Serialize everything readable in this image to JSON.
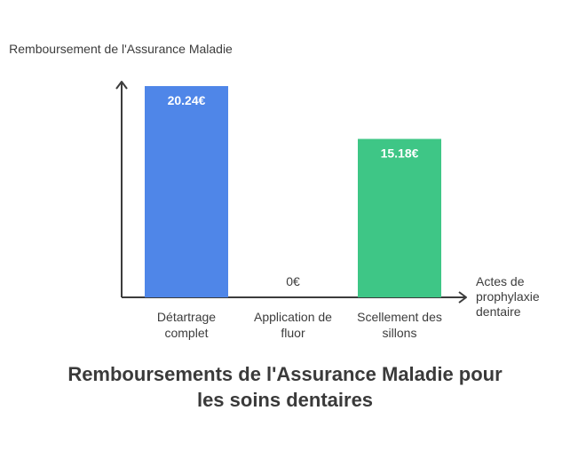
{
  "chart_data": {
    "type": "bar",
    "title": "Remboursements de l'Assurance Maladie pour les soins dentaires",
    "xlabel": "Actes de prophylaxie dentaire",
    "ylabel": "Remboursement de l'Assurance Maladie",
    "categories": [
      "Détartrage complet",
      "Application de fluor",
      "Scellement des sillons"
    ],
    "values": [
      20.24,
      0,
      15.18
    ],
    "value_labels": [
      "20.24€",
      "0€",
      "15.18€"
    ],
    "colors": [
      "#4f86e8",
      "#4f86e8",
      "#3ec686"
    ],
    "ylim": [
      0,
      20.24
    ],
    "grid": false,
    "legend": "none"
  }
}
